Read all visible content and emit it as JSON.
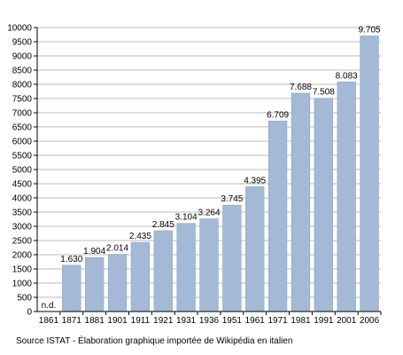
{
  "chart_data": {
    "type": "bar",
    "categories": [
      "1861",
      "1871",
      "1881",
      "1901",
      "1911",
      "1921",
      "1931",
      "1936",
      "1951",
      "1961",
      "1971",
      "1981",
      "1991",
      "2001",
      "2006"
    ],
    "values": [
      null,
      1630,
      1904,
      2014,
      2435,
      2845,
      3104,
      3264,
      3745,
      4395,
      6709,
      7688,
      7508,
      8083,
      9705
    ],
    "data_labels": [
      "n.d.",
      "1.630",
      "1.904",
      "2.014",
      "2.435",
      "2.845",
      "3.104",
      "3.264",
      "3.745",
      "4.395",
      "6.709",
      "7.688",
      "7.508",
      "8.083",
      "9.705"
    ],
    "ylim": [
      0,
      10000
    ],
    "yticks": [
      0,
      500,
      1000,
      1500,
      2000,
      2500,
      3000,
      3500,
      4000,
      4500,
      5000,
      5500,
      6000,
      6500,
      7000,
      7500,
      8000,
      8500,
      9000,
      9500,
      10000
    ],
    "grid": true,
    "bar_color": "#a3b9d5",
    "bar_edge_color": "#8ea6c4",
    "grid_color": "#bbbbbb"
  },
  "source_text": "Source ISTAT - Élaboration graphique importée de Wikipédia en italien"
}
